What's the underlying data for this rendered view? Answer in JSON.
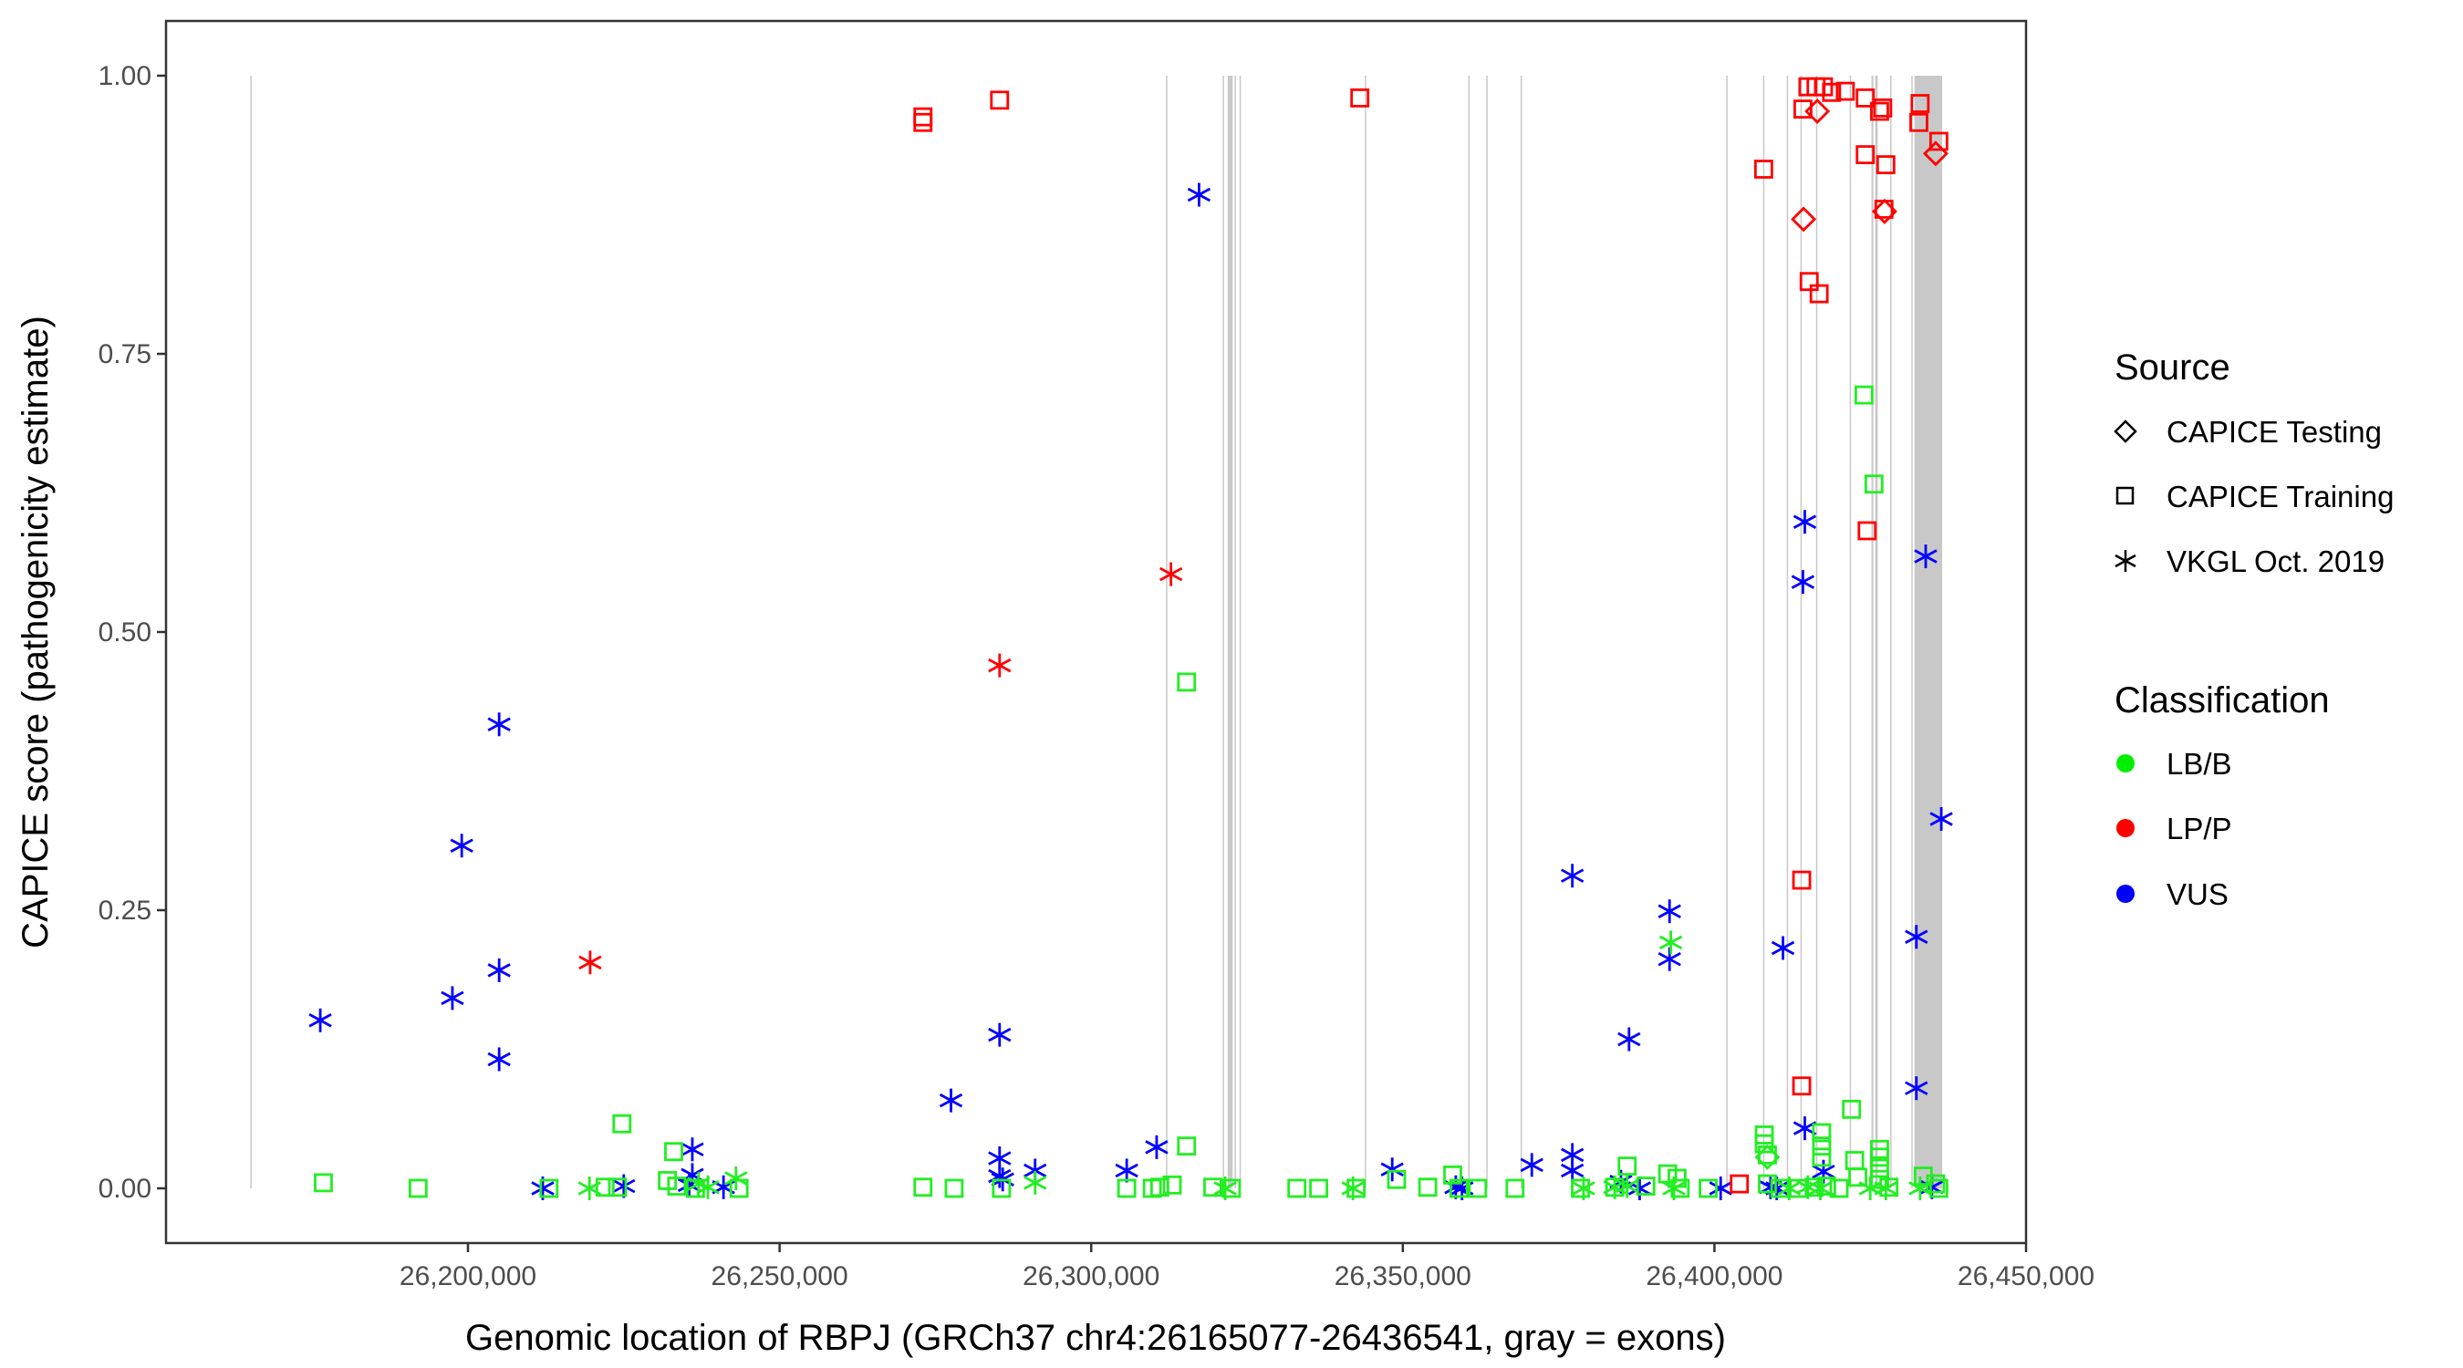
{
  "chart_data": {
    "type": "scatter",
    "xlabel": "Genomic location of RBPJ (GRCh37 chr4:26165077-26436541, gray = exons)",
    "ylabel": "CAPICE score (pathogenicity estimate)",
    "xlim": [
      26151550,
      26450000
    ],
    "ylim": [
      -0.05,
      1.05
    ],
    "x_ticks": [
      26200000,
      26250000,
      26300000,
      26350000,
      26400000,
      26450000
    ],
    "x_tick_labels": [
      "26,200,000",
      "26,250,000",
      "26,300,000",
      "26,350,000",
      "26,400,000",
      "26,450,000"
    ],
    "y_ticks": [
      0,
      0.25,
      0.5,
      0.75,
      1.0
    ],
    "y_tick_labels": [
      "0.00",
      "0.25",
      "0.50",
      "0.75",
      "1.00"
    ],
    "grid": false,
    "legend_placement": "right",
    "exons": [
      [
        26165077,
        26165250
      ],
      [
        26312000,
        26312200
      ],
      [
        26321100,
        26321300
      ],
      [
        26321900,
        26322700
      ],
      [
        26323000,
        26323200
      ],
      [
        26323800,
        26324000
      ],
      [
        26343900,
        26344100
      ],
      [
        26360500,
        26360700
      ],
      [
        26363400,
        26363600
      ],
      [
        26368900,
        26369100
      ],
      [
        26401900,
        26402100
      ],
      [
        26407800,
        26408000
      ],
      [
        26411600,
        26411800
      ],
      [
        26413800,
        26414000
      ],
      [
        26416300,
        26416500
      ],
      [
        26421700,
        26421900
      ],
      [
        26425200,
        26425500
      ],
      [
        26425800,
        26426200
      ],
      [
        26428200,
        26428400
      ],
      [
        26431600,
        26431800
      ],
      [
        26432100,
        26436541
      ]
    ],
    "legends": {
      "source": {
        "title": "Source",
        "entries": [
          {
            "label": "CAPICE Testing",
            "shape": "diamond"
          },
          {
            "label": "CAPICE Training",
            "shape": "square"
          },
          {
            "label": "VKGL Oct. 2019",
            "shape": "asterisk"
          }
        ]
      },
      "classification": {
        "title": "Classification",
        "entries": [
          {
            "label": "LB/B",
            "color": "#00ee00"
          },
          {
            "label": "LP/P",
            "color": "#ff0000"
          },
          {
            "label": "VUS",
            "color": "#0000ff"
          }
        ]
      }
    },
    "colors": {
      "LB/B": "#22ee22",
      "LP/P": "#ff0000",
      "VUS": "#0000ff",
      "exon": "#c8c8c8",
      "axis": "#333333"
    },
    "series": [
      {
        "name": "VUS / VKGL Oct. 2019",
        "classification": "VUS",
        "source": "VKGL Oct. 2019",
        "points": [
          [
            26176300,
            0.151
          ],
          [
            26197500,
            0.171
          ],
          [
            26199000,
            0.308
          ],
          [
            26205000,
            0.417
          ],
          [
            26205000,
            0.196
          ],
          [
            26205000,
            0.116
          ],
          [
            26212000,
            0.0
          ],
          [
            26225000,
            0.002
          ],
          [
            26236000,
            0.035
          ],
          [
            26236000,
            0.012
          ],
          [
            26235500,
            0.003
          ],
          [
            26241000,
            0.001
          ],
          [
            26277500,
            0.079
          ],
          [
            26285300,
            0.138
          ],
          [
            26285300,
            0.027
          ],
          [
            26285300,
            0.011
          ],
          [
            26285800,
            0.008
          ],
          [
            26291000,
            0.016
          ],
          [
            26305700,
            0.016
          ],
          [
            26310500,
            0.037
          ],
          [
            26317300,
            0.893
          ],
          [
            26348300,
            0.017
          ],
          [
            26358500,
            0.001
          ],
          [
            26359500,
            0.0
          ],
          [
            26370700,
            0.021
          ],
          [
            26377200,
            0.281
          ],
          [
            26377200,
            0.03
          ],
          [
            26377200,
            0.016
          ],
          [
            26385000,
            0.006
          ],
          [
            26386300,
            0.134
          ],
          [
            26388000,
            0.0
          ],
          [
            26392800,
            0.249
          ],
          [
            26392800,
            0.206
          ],
          [
            26401000,
            0.0
          ],
          [
            26409000,
            0.001
          ],
          [
            26410000,
            0.0
          ],
          [
            26411000,
            0.216
          ],
          [
            26414200,
            0.545
          ],
          [
            26414500,
            0.599
          ],
          [
            26414500,
            0.054
          ],
          [
            26417500,
            0.015
          ],
          [
            26432400,
            0.226
          ],
          [
            26432400,
            0.09
          ],
          [
            26433900,
            0.568
          ],
          [
            26434900,
            0.001
          ],
          [
            26436400,
            0.332
          ]
        ]
      },
      {
        "name": "LP/P / VKGL Oct. 2019",
        "classification": "LP/P",
        "source": "VKGL Oct. 2019",
        "points": [
          [
            26219600,
            0.203
          ],
          [
            26285300,
            0.47
          ],
          [
            26312800,
            0.552
          ]
        ]
      },
      {
        "name": "LB/B / VKGL Oct. 2019",
        "classification": "LB/B",
        "source": "VKGL Oct. 2019",
        "points": [
          [
            26219500,
            0.0
          ],
          [
            26237000,
            0.004
          ],
          [
            26238500,
            0.001
          ],
          [
            26243000,
            0.009
          ],
          [
            26291000,
            0.005
          ],
          [
            26321500,
            0.0
          ],
          [
            26342000,
            0.0
          ],
          [
            26379000,
            0.0
          ],
          [
            26384000,
            0.001
          ],
          [
            26386000,
            0.002
          ],
          [
            26393000,
            0.221
          ],
          [
            26393500,
            0.0
          ],
          [
            26412000,
            0.0
          ],
          [
            26415000,
            0.001
          ],
          [
            26417000,
            0.0
          ],
          [
            26425000,
            0.0
          ],
          [
            26427500,
            0.0
          ],
          [
            26433000,
            0.0
          ]
        ]
      },
      {
        "name": "LB/B / CAPICE Training",
        "classification": "LB/B",
        "source": "CAPICE Training",
        "points": [
          [
            26176800,
            0.005
          ],
          [
            26192000,
            0.0
          ],
          [
            26213000,
            0.0
          ],
          [
            26222000,
            0.001
          ],
          [
            26224000,
            0.001
          ],
          [
            26224700,
            0.058
          ],
          [
            26232000,
            0.007
          ],
          [
            26233000,
            0.033
          ],
          [
            26233500,
            0.002
          ],
          [
            26236500,
            0.0
          ],
          [
            26243500,
            0.0
          ],
          [
            26273000,
            0.001
          ],
          [
            26278000,
            0.0
          ],
          [
            26285600,
            0.0
          ],
          [
            26305700,
            0.0
          ],
          [
            26309800,
            0.0
          ],
          [
            26311000,
            0.001
          ],
          [
            26313000,
            0.003
          ],
          [
            26315300,
            0.038
          ],
          [
            26315300,
            0.455
          ],
          [
            26319500,
            0.001
          ],
          [
            26322500,
            0.0
          ],
          [
            26333000,
            0.0
          ],
          [
            26336500,
            0.0
          ],
          [
            26342500,
            0.0
          ],
          [
            26349000,
            0.008
          ],
          [
            26354000,
            0.001
          ],
          [
            26358000,
            0.012
          ],
          [
            26359000,
            0.0
          ],
          [
            26362000,
            0.0
          ],
          [
            26368000,
            0.0
          ],
          [
            26378500,
            0.0
          ],
          [
            26384000,
            0.001
          ],
          [
            26386000,
            0.02
          ],
          [
            26389000,
            0.002
          ],
          [
            26392500,
            0.013
          ],
          [
            26394000,
            0.009
          ],
          [
            26394500,
            0.0
          ],
          [
            26399000,
            0.0
          ],
          [
            26408000,
            0.048
          ],
          [
            26408000,
            0.04
          ],
          [
            26408500,
            0.03
          ],
          [
            26408500,
            0.004
          ],
          [
            26410500,
            0.0
          ],
          [
            26413500,
            0.0
          ],
          [
            26416000,
            0.001
          ],
          [
            26417200,
            0.05
          ],
          [
            26417200,
            0.038
          ],
          [
            26417200,
            0.028
          ],
          [
            26418000,
            0.002
          ],
          [
            26420000,
            0.0
          ],
          [
            26422000,
            0.071
          ],
          [
            26422500,
            0.025
          ],
          [
            26423000,
            0.01
          ],
          [
            26424000,
            0.713
          ],
          [
            26425600,
            0.633
          ],
          [
            26426500,
            0.035
          ],
          [
            26426500,
            0.028
          ],
          [
            26426500,
            0.018
          ],
          [
            26426500,
            0.008
          ],
          [
            26428000,
            0.001
          ],
          [
            26433500,
            0.011
          ],
          [
            26435500,
            0.004
          ],
          [
            26436000,
            0.0
          ]
        ]
      },
      {
        "name": "LB/B / CAPICE Testing",
        "classification": "LB/B",
        "source": "CAPICE Testing",
        "points": [
          [
            26408500,
            0.028
          ]
        ]
      },
      {
        "name": "LP/P / CAPICE Training",
        "classification": "LP/P",
        "source": "CAPICE Training",
        "points": [
          [
            26273000,
            0.963
          ],
          [
            26273000,
            0.958
          ],
          [
            26285300,
            0.978
          ],
          [
            26343100,
            0.98
          ],
          [
            26404000,
            0.004
          ],
          [
            26407900,
            0.916
          ],
          [
            26414000,
            0.092
          ],
          [
            26414000,
            0.277
          ],
          [
            26414200,
            0.97
          ],
          [
            26415000,
            0.99
          ],
          [
            26415200,
            0.815
          ],
          [
            26416300,
            0.99
          ],
          [
            26416800,
            0.804
          ],
          [
            26417500,
            0.99
          ],
          [
            26418800,
            0.985
          ],
          [
            26421000,
            0.986
          ],
          [
            26424200,
            0.98
          ],
          [
            26424200,
            0.929
          ],
          [
            26424500,
            0.591
          ],
          [
            26426500,
            0.968
          ],
          [
            26427000,
            0.971
          ],
          [
            26427500,
            0.92
          ],
          [
            26427200,
            0.88
          ],
          [
            26433000,
            0.975
          ],
          [
            26432800,
            0.958
          ],
          [
            26436000,
            0.941
          ]
        ]
      },
      {
        "name": "LP/P / CAPICE Testing",
        "classification": "LP/P",
        "source": "CAPICE Testing",
        "points": [
          [
            26414300,
            0.871
          ],
          [
            26416500,
            0.968
          ],
          [
            26427300,
            0.878
          ],
          [
            26435500,
            0.93
          ]
        ]
      }
    ]
  }
}
